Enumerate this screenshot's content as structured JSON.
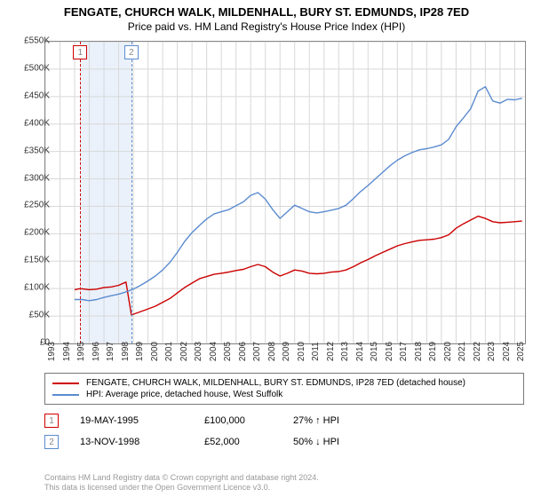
{
  "title": "FENGATE, CHURCH WALK, MILDENHALL, BURY ST. EDMUNDS, IP28 7ED",
  "subtitle": "Price paid vs. HM Land Registry's House Price Index (HPI)",
  "chart": {
    "type": "line",
    "background_color": "#ffffff",
    "grid_color": "#d8d8d8",
    "axis_color": "#888888",
    "font_size_labels": 10,
    "x": {
      "min": 1993,
      "max": 2025.7,
      "ticks": [
        1993,
        1994,
        1995,
        1996,
        1997,
        1998,
        1999,
        2000,
        2001,
        2002,
        2003,
        2004,
        2005,
        2006,
        2007,
        2008,
        2009,
        2010,
        2011,
        2012,
        2013,
        2014,
        2015,
        2016,
        2017,
        2018,
        2019,
        2020,
        2021,
        2022,
        2023,
        2024,
        2025
      ]
    },
    "y": {
      "min": 0,
      "max": 550,
      "ticks": [
        0,
        50,
        100,
        150,
        200,
        250,
        300,
        350,
        400,
        450,
        500,
        550
      ],
      "tick_labels": [
        "£0",
        "£50K",
        "£100K",
        "£150K",
        "£200K",
        "£250K",
        "£300K",
        "£350K",
        "£400K",
        "£450K",
        "£500K",
        "£550K"
      ]
    },
    "band": {
      "from": 1995.38,
      "to": 1998.87,
      "fill": "#eaf1fb"
    },
    "flags": [
      {
        "x": 1995.38,
        "color": "#cc0000",
        "label": "1"
      },
      {
        "x": 1998.87,
        "color": "#5b8bd0",
        "label": "2"
      }
    ],
    "series": [
      {
        "name": "property",
        "color": "#cc0000",
        "width": 1.4,
        "points": [
          [
            1995.0,
            98
          ],
          [
            1995.38,
            100
          ],
          [
            1996,
            98
          ],
          [
            1996.5,
            99
          ],
          [
            1997,
            102
          ],
          [
            1997.5,
            103
          ],
          [
            1998,
            106
          ],
          [
            1998.5,
            112
          ],
          [
            1998.87,
            52
          ],
          [
            1999.5,
            58
          ],
          [
            2000,
            63
          ],
          [
            2000.5,
            68
          ],
          [
            2001,
            75
          ],
          [
            2001.5,
            82
          ],
          [
            2002,
            92
          ],
          [
            2002.5,
            102
          ],
          [
            2003,
            110
          ],
          [
            2003.5,
            118
          ],
          [
            2004,
            122
          ],
          [
            2004.5,
            126
          ],
          [
            2005,
            128
          ],
          [
            2005.5,
            130
          ],
          [
            2006,
            133
          ],
          [
            2006.5,
            135
          ],
          [
            2007,
            140
          ],
          [
            2007.5,
            144
          ],
          [
            2008,
            140
          ],
          [
            2008.5,
            130
          ],
          [
            2009,
            123
          ],
          [
            2009.5,
            128
          ],
          [
            2010,
            134
          ],
          [
            2010.5,
            132
          ],
          [
            2011,
            128
          ],
          [
            2011.5,
            127
          ],
          [
            2012,
            128
          ],
          [
            2012.5,
            130
          ],
          [
            2013,
            131
          ],
          [
            2013.5,
            134
          ],
          [
            2014,
            140
          ],
          [
            2014.5,
            147
          ],
          [
            2015,
            153
          ],
          [
            2015.5,
            160
          ],
          [
            2016,
            166
          ],
          [
            2016.5,
            172
          ],
          [
            2017,
            178
          ],
          [
            2017.5,
            182
          ],
          [
            2018,
            185
          ],
          [
            2018.5,
            188
          ],
          [
            2019,
            189
          ],
          [
            2019.5,
            190
          ],
          [
            2020,
            193
          ],
          [
            2020.5,
            198
          ],
          [
            2021,
            210
          ],
          [
            2021.5,
            218
          ],
          [
            2022,
            225
          ],
          [
            2022.5,
            232
          ],
          [
            2023,
            228
          ],
          [
            2023.5,
            222
          ],
          [
            2024,
            220
          ],
          [
            2024.5,
            221
          ],
          [
            2025,
            222
          ],
          [
            2025.5,
            223
          ]
        ]
      },
      {
        "name": "hpi",
        "color": "#5b8bd0",
        "width": 1.4,
        "points": [
          [
            1995.0,
            80
          ],
          [
            1995.5,
            80
          ],
          [
            1996,
            78
          ],
          [
            1996.5,
            80
          ],
          [
            1997,
            84
          ],
          [
            1997.5,
            87
          ],
          [
            1998,
            90
          ],
          [
            1998.5,
            94
          ],
          [
            1999,
            99
          ],
          [
            1999.5,
            106
          ],
          [
            2000,
            114
          ],
          [
            2000.5,
            123
          ],
          [
            2001,
            134
          ],
          [
            2001.5,
            148
          ],
          [
            2002,
            166
          ],
          [
            2002.5,
            186
          ],
          [
            2003,
            202
          ],
          [
            2003.5,
            215
          ],
          [
            2004,
            227
          ],
          [
            2004.5,
            236
          ],
          [
            2005,
            240
          ],
          [
            2005.5,
            244
          ],
          [
            2006,
            251
          ],
          [
            2006.5,
            258
          ],
          [
            2007,
            270
          ],
          [
            2007.5,
            275
          ],
          [
            2008,
            263
          ],
          [
            2008.5,
            244
          ],
          [
            2009,
            228
          ],
          [
            2009.5,
            240
          ],
          [
            2010,
            252
          ],
          [
            2010.5,
            246
          ],
          [
            2011,
            240
          ],
          [
            2011.5,
            238
          ],
          [
            2012,
            240
          ],
          [
            2012.5,
            243
          ],
          [
            2013,
            246
          ],
          [
            2013.5,
            252
          ],
          [
            2014,
            264
          ],
          [
            2014.5,
            277
          ],
          [
            2015,
            288
          ],
          [
            2015.5,
            300
          ],
          [
            2016,
            312
          ],
          [
            2016.5,
            324
          ],
          [
            2017,
            334
          ],
          [
            2017.5,
            342
          ],
          [
            2018,
            348
          ],
          [
            2018.5,
            353
          ],
          [
            2019,
            355
          ],
          [
            2019.5,
            358
          ],
          [
            2020,
            362
          ],
          [
            2020.5,
            372
          ],
          [
            2021,
            395
          ],
          [
            2021.5,
            411
          ],
          [
            2022,
            428
          ],
          [
            2022.5,
            460
          ],
          [
            2023,
            468
          ],
          [
            2023.5,
            442
          ],
          [
            2024,
            438
          ],
          [
            2024.5,
            445
          ],
          [
            2025,
            444
          ],
          [
            2025.5,
            447
          ]
        ]
      }
    ]
  },
  "legend": [
    {
      "color": "#cc0000",
      "text": "FENGATE, CHURCH WALK, MILDENHALL, BURY ST. EDMUNDS, IP28 7ED (detached house)"
    },
    {
      "color": "#5b8bd0",
      "text": "HPI: Average price, detached house, West Suffolk"
    }
  ],
  "sales": [
    {
      "badge": "1",
      "badge_color": "#cc0000",
      "date": "19-MAY-1995",
      "price": "£100,000",
      "delta": "27% ↑ HPI"
    },
    {
      "badge": "2",
      "badge_color": "#5b8bd0",
      "date": "13-NOV-1998",
      "price": "£52,000",
      "delta": "50% ↓ HPI"
    }
  ],
  "credits": {
    "line1": "Contains HM Land Registry data © Crown copyright and database right 2024.",
    "line2": "This data is licensed under the Open Government Licence v3.0."
  }
}
